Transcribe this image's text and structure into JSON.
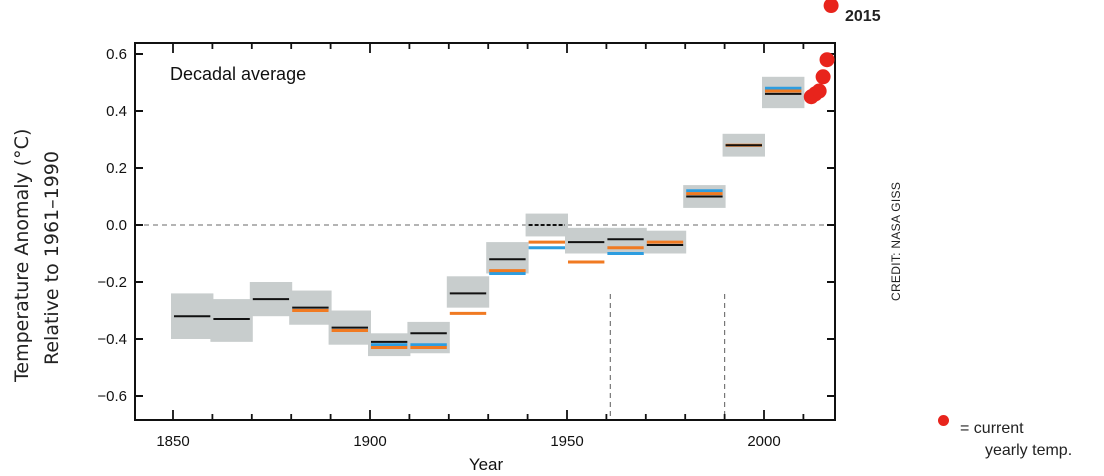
{
  "chart_data": {
    "type": "scatter",
    "title": "Decadal average",
    "xlabel": "Year",
    "ylabel_line1": "Temperature Anomaly (°C)",
    "ylabel_line2": "Relative to 1961–1990",
    "xlim": [
      1830,
      2020
    ],
    "ylim": [
      -0.7,
      0.65
    ],
    "x_ticks": [
      1850,
      1900,
      1950,
      2000
    ],
    "y_ticks": [
      0.6,
      0.4,
      0.2,
      0.0,
      -0.2,
      -0.4,
      -0.6
    ],
    "y_tick_labels": [
      "0.6",
      "0.4",
      "0.2",
      "0.0",
      "−0.2",
      "−0.4",
      "−0.6"
    ],
    "zero_line": true,
    "reference_period_markers": [
      1961,
      1990
    ],
    "colors": {
      "band": "#c8cdcd",
      "black": "#111111",
      "orange": "#f07a22",
      "blue": "#2d9de0",
      "red": "#e8241c"
    },
    "decades": [
      {
        "start": 1850,
        "end": 1860,
        "black": -0.32,
        "band": [
          -0.4,
          -0.24
        ]
      },
      {
        "start": 1860,
        "end": 1870,
        "black": -0.33,
        "band": [
          -0.41,
          -0.26
        ]
      },
      {
        "start": 1870,
        "end": 1880,
        "black": -0.26,
        "band": [
          -0.32,
          -0.2
        ]
      },
      {
        "start": 1880,
        "end": 1890,
        "black": -0.29,
        "orange": -0.3,
        "band": [
          -0.35,
          -0.23
        ]
      },
      {
        "start": 1890,
        "end": 1900,
        "black": -0.36,
        "orange": -0.37,
        "band": [
          -0.42,
          -0.3
        ]
      },
      {
        "start": 1900,
        "end": 1910,
        "black": -0.41,
        "orange": -0.43,
        "blue": -0.42,
        "band": [
          -0.46,
          -0.38
        ]
      },
      {
        "start": 1910,
        "end": 1920,
        "black": -0.38,
        "orange": -0.43,
        "blue": -0.42,
        "band": [
          -0.45,
          -0.34
        ]
      },
      {
        "start": 1920,
        "end": 1930,
        "black": -0.24,
        "orange": -0.31,
        "band": [
          -0.29,
          -0.18
        ]
      },
      {
        "start": 1930,
        "end": 1940,
        "black": -0.12,
        "orange": -0.16,
        "blue": -0.17,
        "band": [
          -0.17,
          -0.06
        ]
      },
      {
        "start": 1940,
        "end": 1950,
        "black": 0.0,
        "orange": -0.06,
        "blue": -0.08,
        "band": [
          -0.04,
          0.04
        ]
      },
      {
        "start": 1950,
        "end": 1960,
        "black": -0.06,
        "orange": -0.13,
        "band": [
          -0.1,
          -0.01
        ]
      },
      {
        "start": 1960,
        "end": 1970,
        "black": -0.05,
        "orange": -0.08,
        "blue": -0.1,
        "band": [
          -0.1,
          -0.01
        ]
      },
      {
        "start": 1970,
        "end": 1980,
        "black": -0.07,
        "orange": -0.06,
        "band": [
          -0.1,
          -0.02
        ]
      },
      {
        "start": 1980,
        "end": 1990,
        "black": 0.1,
        "orange": 0.11,
        "blue": 0.12,
        "band": [
          0.06,
          0.14
        ]
      },
      {
        "start": 1990,
        "end": 2000,
        "black": 0.28,
        "orange": 0.28,
        "band": [
          0.24,
          0.32
        ]
      },
      {
        "start": 2000,
        "end": 2010,
        "black": 0.46,
        "orange": 0.47,
        "blue": 0.48,
        "band": [
          0.41,
          0.52
        ]
      }
    ],
    "yearly_points": [
      {
        "year": 2012,
        "value": 0.45
      },
      {
        "year": 2013,
        "value": 0.46
      },
      {
        "year": 2014,
        "value": 0.47
      },
      {
        "year": 2015,
        "value": 0.52
      },
      {
        "year": 2016,
        "value": 0.58
      },
      {
        "year": 2015,
        "value": 0.77,
        "label": "2015"
      }
    ]
  },
  "credit": "CREDIT: NASA GISS",
  "legend": {
    "line1": "= current",
    "line2": "yearly temp."
  },
  "point_label": "2015"
}
